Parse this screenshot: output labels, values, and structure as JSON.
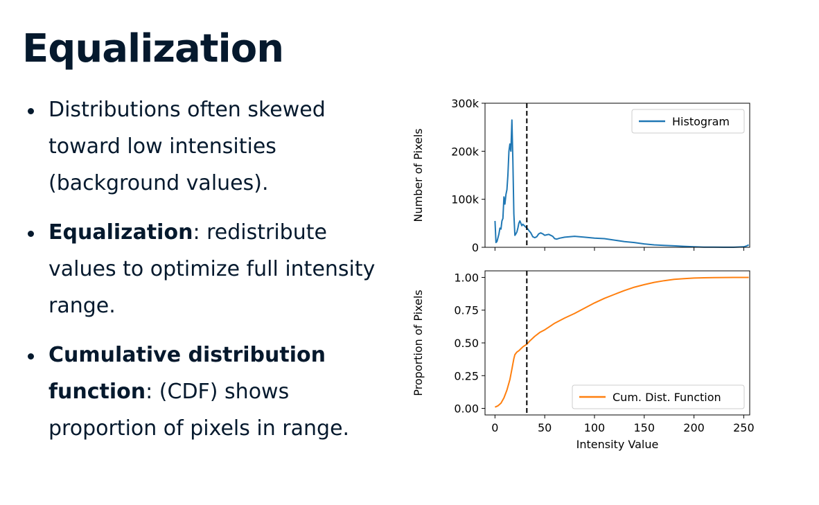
{
  "slide": {
    "title": "Equalization",
    "bullets": [
      {
        "bold": "",
        "text": "Distributions often skewed toward low intensities (background values)."
      },
      {
        "bold": "Equalization",
        "text": ": redistribute values to optimize full intensity range."
      },
      {
        "bold": "Cumulative distribution function",
        "text": ": (CDF) shows proportion of pixels in range."
      }
    ]
  },
  "chart_data": [
    {
      "type": "line",
      "title": "",
      "xlabel": "",
      "ylabel": "Number of Pixels",
      "xlim": [
        -10,
        256
      ],
      "ylim": [
        0,
        300000
      ],
      "yticks": [
        0,
        100000,
        200000,
        300000
      ],
      "ytick_labels": [
        "0",
        "100k",
        "200k",
        "300k"
      ],
      "xticks": [
        0,
        50,
        100,
        150,
        200,
        250
      ],
      "legend": "top-right",
      "vline": {
        "x": 32,
        "style": "dashed",
        "color": "#000000"
      },
      "series": [
        {
          "name": "Histogram",
          "color": "#1f77b4",
          "x": [
            0,
            1,
            2,
            3,
            4,
            5,
            6,
            7,
            8,
            9,
            10,
            11,
            12,
            13,
            14,
            15,
            16,
            17,
            18,
            19,
            20,
            21,
            22,
            23,
            24,
            25,
            26,
            27,
            28,
            29,
            30,
            31,
            32,
            33,
            34,
            36,
            38,
            40,
            42,
            44,
            46,
            48,
            50,
            52,
            54,
            56,
            58,
            60,
            62,
            65,
            70,
            75,
            80,
            85,
            90,
            100,
            110,
            120,
            130,
            140,
            150,
            160,
            170,
            180,
            190,
            200,
            210,
            220,
            230,
            240,
            250,
            253,
            255
          ],
          "y": [
            55000,
            10000,
            12000,
            20000,
            28000,
            40000,
            38000,
            55000,
            60000,
            105000,
            90000,
            110000,
            120000,
            150000,
            200000,
            215000,
            200000,
            265000,
            180000,
            70000,
            25000,
            28000,
            32000,
            40000,
            50000,
            55000,
            50000,
            45000,
            48000,
            46000,
            44000,
            42000,
            40000,
            38000,
            35000,
            30000,
            22000,
            20000,
            22000,
            28000,
            30000,
            28000,
            25000,
            26000,
            27000,
            25000,
            23000,
            18000,
            17000,
            19000,
            21000,
            22000,
            23000,
            22000,
            21000,
            19000,
            18000,
            15000,
            12000,
            10000,
            7000,
            5000,
            4000,
            3000,
            2000,
            1000,
            500,
            300,
            200,
            200,
            1000,
            3000,
            5000
          ]
        }
      ]
    },
    {
      "type": "line",
      "title": "",
      "xlabel": "Intensity Value",
      "ylabel": "Proportion of Pixels",
      "xlim": [
        -10,
        256
      ],
      "ylim": [
        -0.05,
        1.05
      ],
      "yticks": [
        0.0,
        0.25,
        0.5,
        0.75,
        1.0
      ],
      "ytick_labels": [
        "0.00",
        "0.25",
        "0.50",
        "0.75",
        "1.00"
      ],
      "xticks": [
        0,
        50,
        100,
        150,
        200,
        250
      ],
      "xtick_labels": [
        "0",
        "50",
        "100",
        "150",
        "200",
        "250"
      ],
      "legend": "bottom-right",
      "vline": {
        "x": 32,
        "style": "dashed",
        "color": "#000000"
      },
      "series": [
        {
          "name": "Cum. Dist. Function",
          "color": "#ff7f0e",
          "x": [
            0,
            3,
            6,
            9,
            12,
            15,
            17,
            19,
            20,
            21,
            22,
            24,
            26,
            28,
            30,
            32,
            35,
            40,
            45,
            50,
            55,
            60,
            70,
            80,
            90,
            100,
            110,
            120,
            130,
            140,
            150,
            160,
            170,
            180,
            190,
            200,
            210,
            220,
            230,
            240,
            250,
            255
          ],
          "y": [
            0.01,
            0.02,
            0.04,
            0.08,
            0.14,
            0.22,
            0.3,
            0.38,
            0.41,
            0.42,
            0.43,
            0.44,
            0.455,
            0.47,
            0.48,
            0.49,
            0.515,
            0.55,
            0.58,
            0.6,
            0.625,
            0.65,
            0.69,
            0.725,
            0.765,
            0.805,
            0.84,
            0.87,
            0.9,
            0.925,
            0.945,
            0.962,
            0.975,
            0.985,
            0.991,
            0.995,
            0.997,
            0.998,
            0.999,
            1.0,
            1.0,
            1.0
          ]
        }
      ]
    }
  ]
}
